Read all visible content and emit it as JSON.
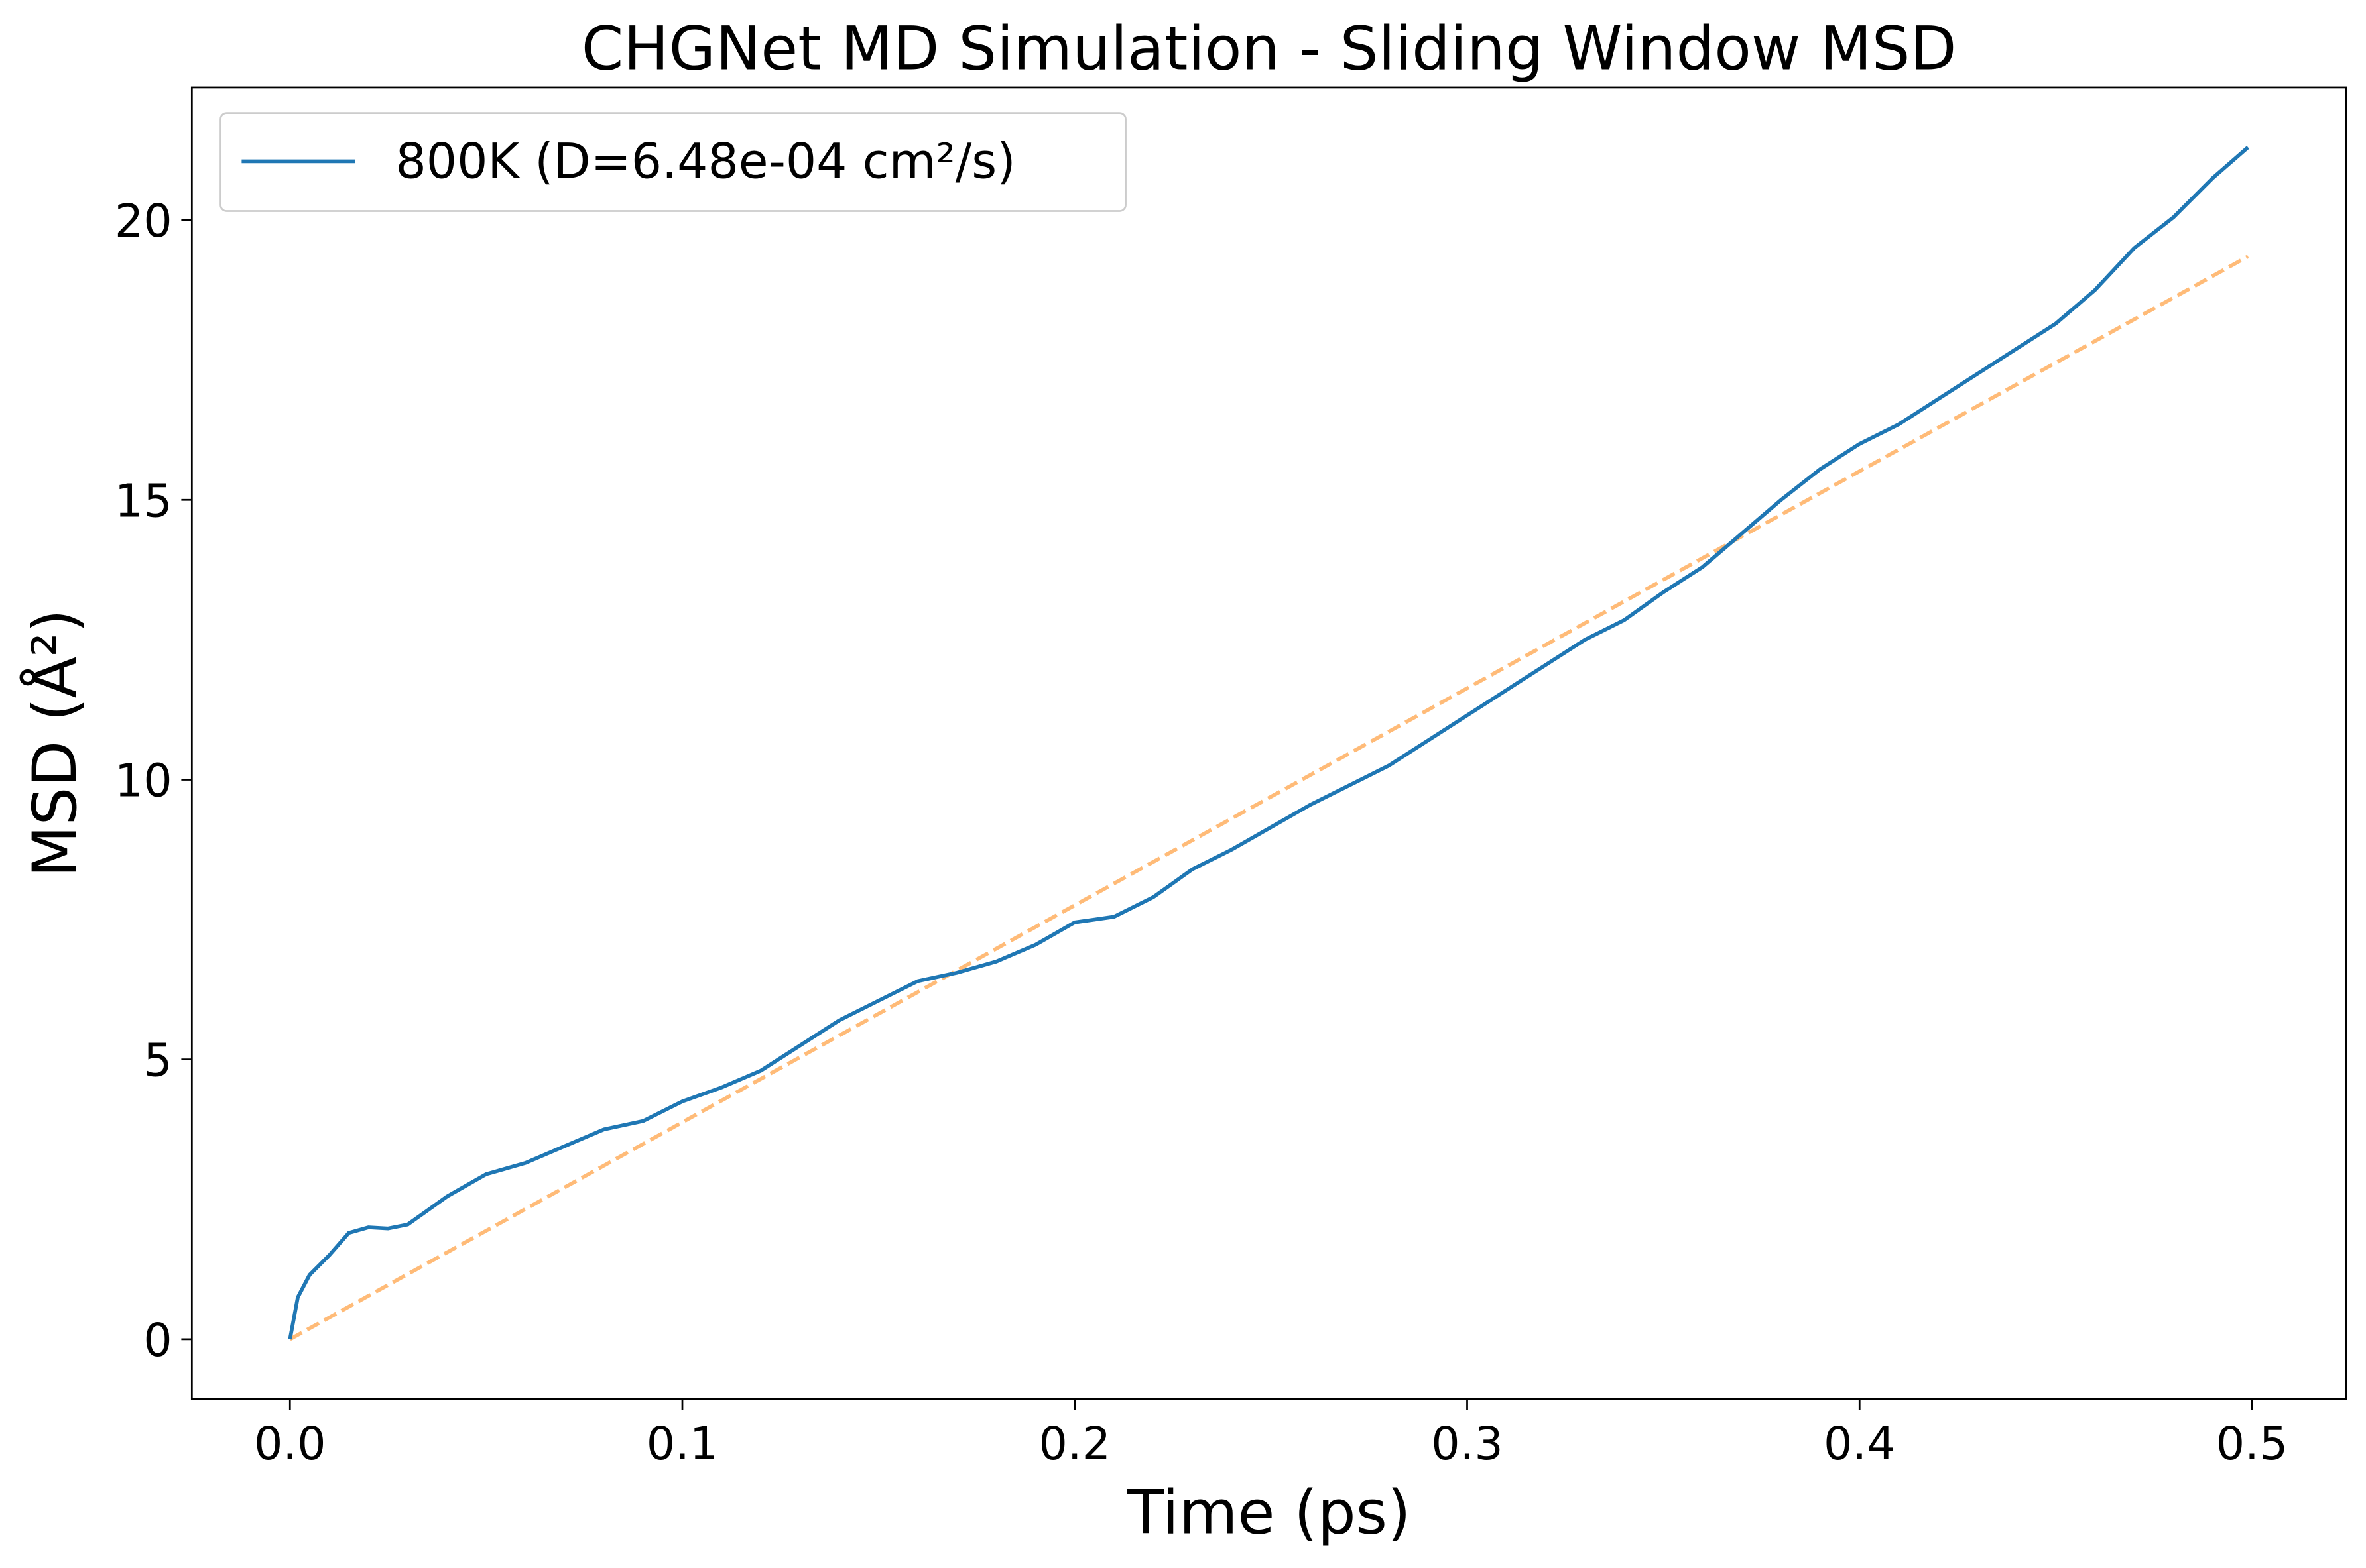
{
  "chart_data": {
    "type": "line",
    "title": "CHGNet MD Simulation - Sliding Window MSD",
    "x_label": "Time (ps)",
    "y_label": "MSD (Å²)",
    "xlim": [
      -0.025,
      0.524
    ],
    "ylim": [
      -1.07,
      22.37
    ],
    "xticks": [
      {
        "value": 0,
        "label": "0.0"
      },
      0.1,
      0.2,
      0.3,
      0.4,
      0.5
    ],
    "yticks": [
      0,
      5,
      10,
      15,
      20
    ],
    "legend": "upper left",
    "series": [
      {
        "name": "800K (D=6.48e-04 cm²/s)",
        "color": "#1f77b4",
        "style": "solid",
        "x": [
          0,
          0.002,
          0.005,
          0.01,
          0.015,
          0.02,
          0.025,
          0.03,
          0.035,
          0.04,
          0.045,
          0.05,
          0.06,
          0.07,
          0.08,
          0.09,
          0.1,
          0.11,
          0.12,
          0.13,
          0.14,
          0.15,
          0.16,
          0.17,
          0.18,
          0.19,
          0.2,
          0.21,
          0.22,
          0.23,
          0.24,
          0.25,
          0.26,
          0.27,
          0.28,
          0.29,
          0.3,
          0.31,
          0.32,
          0.33,
          0.34,
          0.35,
          0.36,
          0.37,
          0.38,
          0.39,
          0.4,
          0.41,
          0.42,
          0.43,
          0.44,
          0.45,
          0.46,
          0.47,
          0.48,
          0.49,
          0.499
        ],
        "values": [
          0,
          0.75,
          1.15,
          1.5,
          1.9,
          2.0,
          1.98,
          2.05,
          2.3,
          2.55,
          2.75,
          2.95,
          3.15,
          3.45,
          3.75,
          3.9,
          4.25,
          4.5,
          4.8,
          5.25,
          5.7,
          6.05,
          6.4,
          6.55,
          6.75,
          7.05,
          7.45,
          7.55,
          7.9,
          8.4,
          8.75,
          9.15,
          9.55,
          9.9,
          10.25,
          10.7,
          11.15,
          11.6,
          12.05,
          12.5,
          12.85,
          13.35,
          13.8,
          14.4,
          15.0,
          15.55,
          16.0,
          16.35,
          16.8,
          17.25,
          17.7,
          18.15,
          18.75,
          19.5,
          20.05,
          20.75,
          21.3
        ]
      },
      {
        "color": "#ffbb78",
        "style": "dashed",
        "x": [
          0,
          0.499
        ],
        "values": [
          0,
          19.35
        ]
      }
    ]
  }
}
